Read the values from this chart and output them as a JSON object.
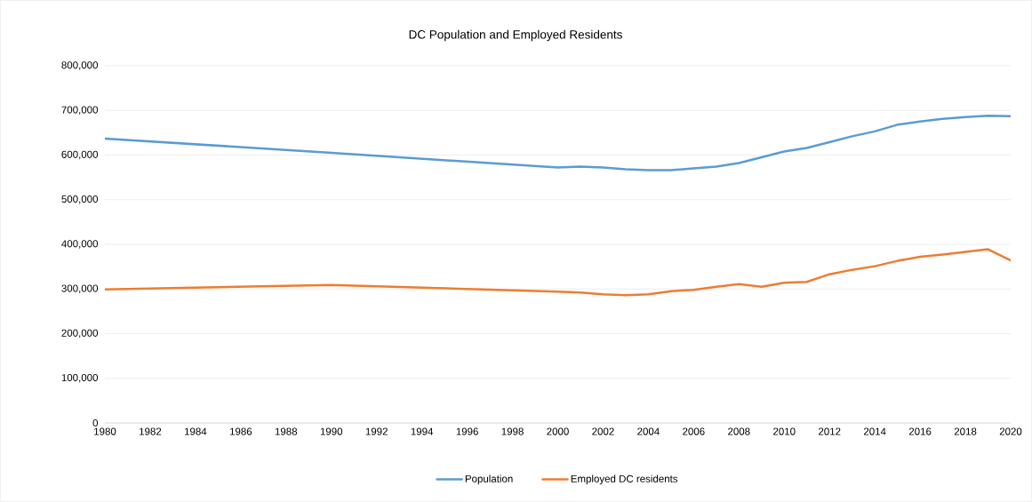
{
  "chart_data": {
    "type": "line",
    "title": "DC Population and Employed Residents",
    "x": [
      1980,
      1990,
      2000,
      2001,
      2002,
      2003,
      2004,
      2005,
      2006,
      2007,
      2008,
      2009,
      2010,
      2011,
      2012,
      2013,
      2014,
      2015,
      2016,
      2017,
      2018,
      2019,
      2020
    ],
    "series": [
      {
        "name": "Population",
        "color": "#5b9bd5",
        "values": [
          637000,
          605000,
          572000,
          574000,
          572000,
          568000,
          566000,
          566000,
          570000,
          574000,
          582000,
          595000,
          608000,
          616000,
          629000,
          642000,
          653000,
          668000,
          675000,
          681000,
          685000,
          688000,
          687000
        ]
      },
      {
        "name": "Employed DC residents",
        "color": "#ed7d31",
        "values": [
          299000,
          309000,
          294000,
          292000,
          288000,
          286000,
          288000,
          295000,
          298000,
          305000,
          311000,
          305000,
          314000,
          316000,
          333000,
          343000,
          351000,
          363000,
          372000,
          377000,
          383000,
          389000,
          364000
        ]
      }
    ],
    "xlim": [
      1980,
      2020
    ],
    "xticks": [
      1980,
      1982,
      1984,
      1986,
      1988,
      1990,
      1992,
      1994,
      1996,
      1998,
      2000,
      2002,
      2004,
      2006,
      2008,
      2010,
      2012,
      2014,
      2016,
      2018,
      2020
    ],
    "ylim": [
      0,
      800000
    ],
    "yticks": [
      {
        "value": 0,
        "label": "0"
      },
      {
        "value": 100000,
        "label": "100,000"
      },
      {
        "value": 200000,
        "label": "200,000"
      },
      {
        "value": 300000,
        "label": "300,000"
      },
      {
        "value": 400000,
        "label": "400,000"
      },
      {
        "value": 500000,
        "label": "500,000"
      },
      {
        "value": 600000,
        "label": "600,000"
      },
      {
        "value": 700000,
        "label": "700,000"
      },
      {
        "value": 800000,
        "label": "800,000"
      }
    ],
    "grid": "y",
    "legend": "bottom",
    "marker": "none",
    "line_style": "solid"
  }
}
